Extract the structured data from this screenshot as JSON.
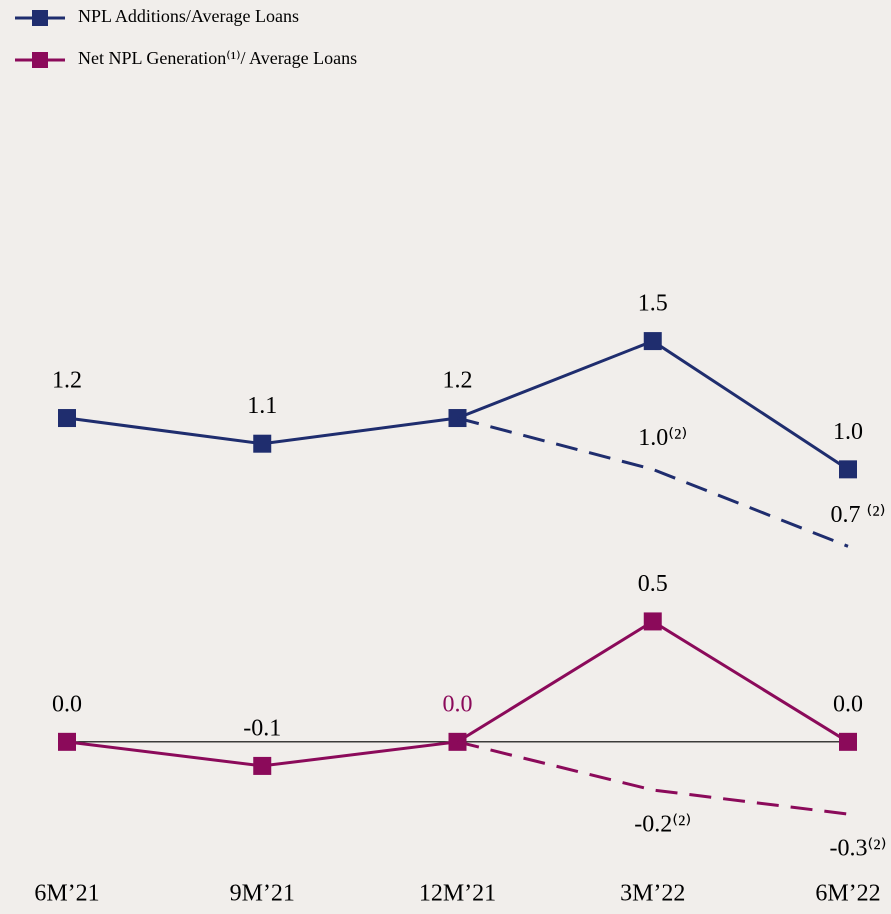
{
  "chart_data": {
    "type": "line",
    "categories": [
      "6M’21",
      "9M’21",
      "12M’21",
      "3M’22",
      "6M’22"
    ],
    "ylim": [
      -0.25,
      2.05
    ],
    "y2lim": [
      -0.2,
      2.25
    ],
    "series": [
      {
        "name": "NPL Additions/Average Loans",
        "color": "#1f2d6e",
        "values": [
          1.2,
          1.1,
          1.2,
          1.5,
          1.0
        ],
        "value_labels": [
          "1.2",
          "1.1",
          "1.2",
          "1.5",
          "1.0"
        ],
        "label_position": "above",
        "markers": true
      },
      {
        "name": "Net NPL Generation⁽¹⁾/ Average Loans",
        "color": "#8b0a5a",
        "axis": "y2",
        "values": [
          0.0,
          -0.1,
          0.0,
          0.5,
          0.0
        ],
        "value_labels": [
          "0.0",
          "-0.1",
          "0.0",
          "0.5",
          "0.0"
        ],
        "value_label_colors": [
          "#000000",
          "#000000",
          "#8b0a5a",
          "#000000",
          "#000000"
        ],
        "label_position": "above",
        "markers": true
      },
      {
        "color": "#1f2d6e",
        "dashed": true,
        "values": [
          null,
          null,
          1.2,
          1.0,
          0.7
        ],
        "value_labels": [
          null,
          null,
          null,
          "1.0⁽²⁾",
          "0.7 ⁽²⁾"
        ],
        "label_position": "above",
        "markers": false
      },
      {
        "color": "#8b0a5a",
        "axis": "y2",
        "dashed": true,
        "values": [
          null,
          null,
          0.0,
          -0.2,
          -0.3
        ],
        "value_labels": [
          null,
          null,
          null,
          "-0.2⁽²⁾",
          "-0.3⁽²⁾"
        ],
        "label_position": "below",
        "markers": false
      }
    ]
  }
}
